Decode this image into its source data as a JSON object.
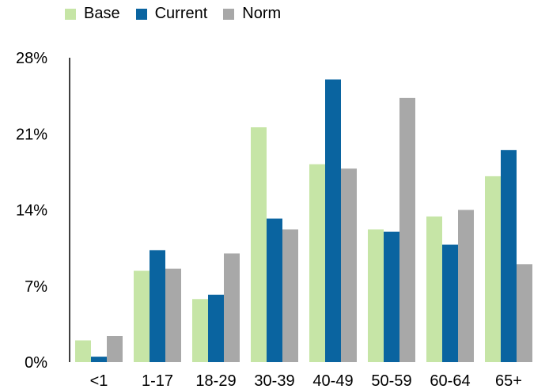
{
  "chart_data": {
    "type": "bar",
    "categories": [
      "<1",
      "1-17",
      "18-29",
      "30-39",
      "40-49",
      "50-59",
      "60-64",
      "65+"
    ],
    "series": [
      {
        "name": "Base",
        "color": "#c6e5a6",
        "values": [
          2.0,
          8.4,
          5.8,
          21.6,
          18.2,
          12.2,
          13.4,
          17.1
        ]
      },
      {
        "name": "Current",
        "color": "#0a64a0",
        "values": [
          0.5,
          10.3,
          6.2,
          13.2,
          26.0,
          12.0,
          10.8,
          19.5
        ]
      },
      {
        "name": "Norm",
        "color": "#a8a8a8",
        "values": [
          2.4,
          8.6,
          10.0,
          12.2,
          17.8,
          24.3,
          14.0,
          9.0
        ]
      }
    ],
    "y_ticks": [
      "0%",
      "7%",
      "14%",
      "21%",
      "28%"
    ],
    "ylim": [
      0,
      28
    ],
    "legend_position": "top-left",
    "grid": false
  }
}
